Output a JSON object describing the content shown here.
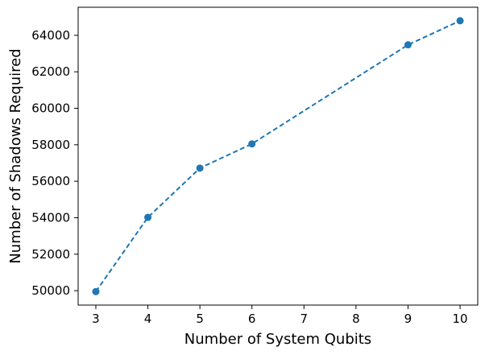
{
  "chart_data": {
    "type": "line",
    "title": "",
    "xlabel": "Number of System Qubits",
    "ylabel": "Number of Shadows Required",
    "x": [
      3,
      4,
      5,
      6,
      9,
      10
    ],
    "series": [
      {
        "values": [
          49950,
          54020,
          56720,
          58050,
          63480,
          64800
        ],
        "color": "#1f77b4",
        "line_style": "dashed",
        "marker": "circle"
      }
    ],
    "xlim": [
      2.66,
      10.34
    ],
    "ylim": [
      49210,
      65540
    ],
    "xticks": [
      3,
      4,
      5,
      6,
      7,
      8,
      9,
      10
    ],
    "yticks": [
      50000,
      52000,
      54000,
      56000,
      58000,
      60000,
      62000,
      64000
    ],
    "xtick_labels": [
      "3",
      "4",
      "5",
      "6",
      "7",
      "8",
      "9",
      "10"
    ],
    "ytick_labels": [
      "50000",
      "52000",
      "54000",
      "56000",
      "58000",
      "60000",
      "62000",
      "64000"
    ],
    "grid": false,
    "legend": "none"
  }
}
